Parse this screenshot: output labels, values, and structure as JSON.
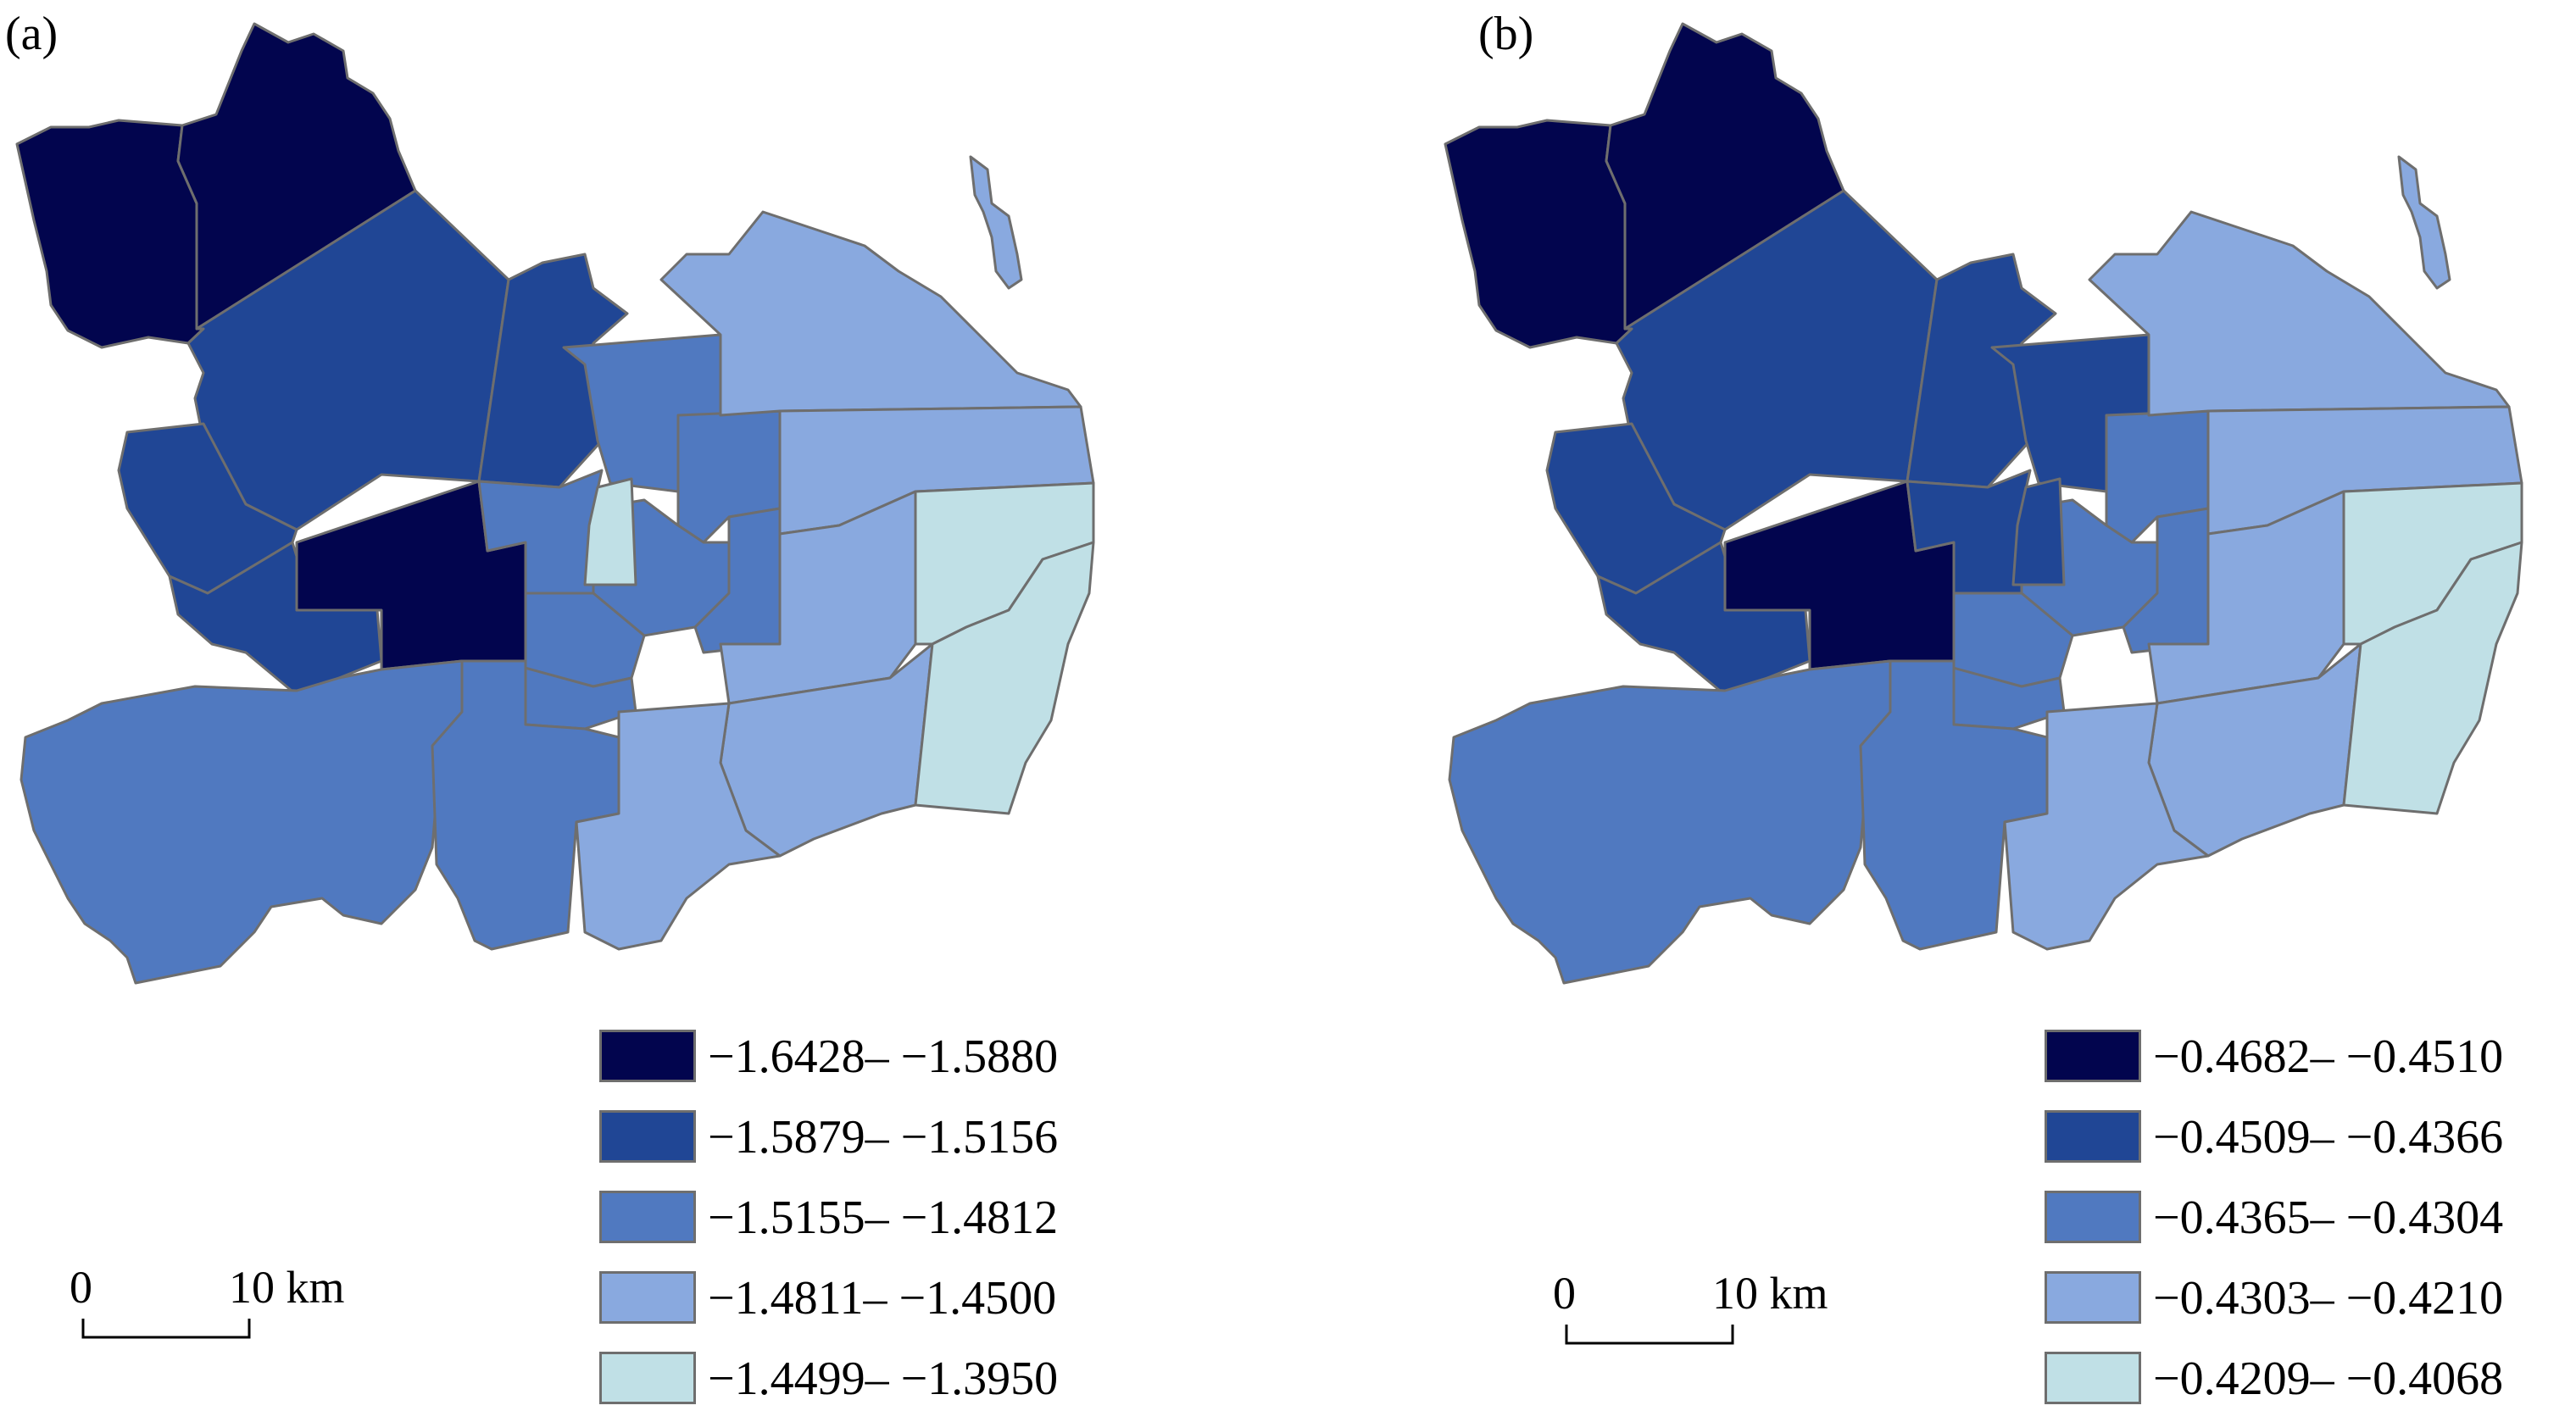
{
  "colors": {
    "class1": "#02054e",
    "class2": "#204695",
    "class3": "#5079c0",
    "class4": "#89a9df",
    "class5": "#c0e0e6",
    "boundary": "#6e6e6e"
  },
  "panels": [
    {
      "label": "(a)",
      "legend": [
        {
          "range": "−1.6428– −1.5880",
          "color": "#02054e"
        },
        {
          "range": "−1.5879– −1.5156",
          "color": "#204695"
        },
        {
          "range": "−1.5155– −1.4812",
          "color": "#5079c0"
        },
        {
          "range": "−1.4811– −1.4500",
          "color": "#89a9df"
        },
        {
          "range": "−1.4499– −1.3950",
          "color": "#c0e0e6"
        }
      ],
      "scale_bar": {
        "start": "0",
        "end": "10 km"
      }
    },
    {
      "label": "(b)",
      "legend": [
        {
          "range": "−0.4682– −0.4510",
          "color": "#02054e"
        },
        {
          "range": "−0.4509– −0.4366",
          "color": "#204695"
        },
        {
          "range": "−0.4365– −0.4304",
          "color": "#5079c0"
        },
        {
          "range": "−0.4303– −0.4210",
          "color": "#89a9df"
        },
        {
          "range": "−0.4209– −0.4068",
          "color": "#c0e0e6"
        }
      ],
      "scale_bar": {
        "start": "0",
        "end": "10 km"
      }
    }
  ]
}
